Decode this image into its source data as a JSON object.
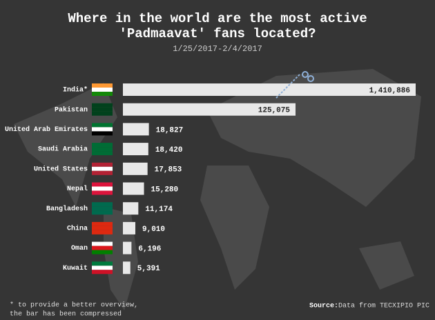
{
  "chart_data": {
    "type": "bar",
    "orientation": "horizontal",
    "title": "Where in the world are the most active",
    "title_line2": "'Padmaavat' fans located?",
    "subtitle": "1/25/2017-2/4/2017",
    "categories": [
      "India*",
      "Pakistan",
      "United Arab Emirates",
      "Saudi Arabia",
      "United States",
      "Nepal",
      "Bangladesh",
      "China",
      "Oman",
      "Kuwait"
    ],
    "values": [
      1410886,
      125075,
      18827,
      18420,
      17853,
      15280,
      11174,
      9010,
      6196,
      5391
    ],
    "value_labels": [
      "1,410,886",
      "125,075",
      "18,827",
      "18,420",
      "17,853",
      "15,280",
      "11,174",
      "9,010",
      "6,196",
      "5,391"
    ],
    "color": "#e8e8e8",
    "footnote": "* to provide a better overview,",
    "footnote_line2": "the bar has been compressed",
    "source_label": "Source:",
    "source": "Data from TECXIPIO PIC"
  }
}
